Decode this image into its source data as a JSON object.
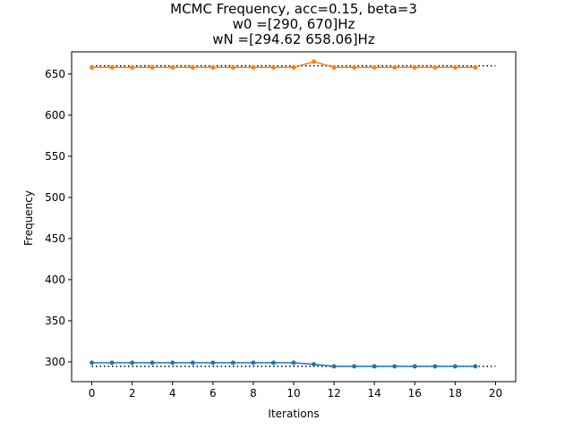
{
  "chart_data": {
    "type": "line",
    "title": "MCMC Frequency, acc=0.15, beta=3",
    "subtitle_lines": [
      "w0 =[290, 670]Hz",
      "wN =[294.62 658.06]Hz"
    ],
    "xlabel": "Iterations",
    "ylabel": "Frequency",
    "xlim": [
      -1,
      21
    ],
    "ylim": [
      276,
      677
    ],
    "xticks": [
      0,
      2,
      4,
      6,
      8,
      10,
      12,
      14,
      16,
      18,
      20
    ],
    "yticks": [
      300,
      350,
      400,
      450,
      500,
      550,
      600,
      650
    ],
    "grid": false,
    "x": [
      0,
      1,
      2,
      3,
      4,
      5,
      6,
      7,
      8,
      9,
      10,
      11,
      12,
      13,
      14,
      15,
      16,
      17,
      18,
      19
    ],
    "series": [
      {
        "color": "#1f77b4",
        "values": [
          299,
          299,
          299,
          299,
          299,
          299,
          299,
          299,
          299,
          299,
          299,
          297,
          294.62,
          294.62,
          294.62,
          294.62,
          294.62,
          294.62,
          294.62,
          294.62
        ]
      },
      {
        "color": "#ff7f0e",
        "values": [
          658.06,
          658.06,
          658.06,
          658.06,
          658.06,
          658.06,
          658.06,
          658.06,
          658.06,
          658.06,
          658.06,
          665,
          658.06,
          658.06,
          658.06,
          658.06,
          658.06,
          658.06,
          658.06,
          658.06
        ]
      }
    ],
    "reference_lines": [
      {
        "y": 294.62,
        "x_range": [
          0,
          20
        ],
        "style": "dotted",
        "color": "#000000"
      },
      {
        "y": 660,
        "x_range": [
          0,
          20
        ],
        "style": "dotted",
        "color": "#000000"
      }
    ]
  }
}
